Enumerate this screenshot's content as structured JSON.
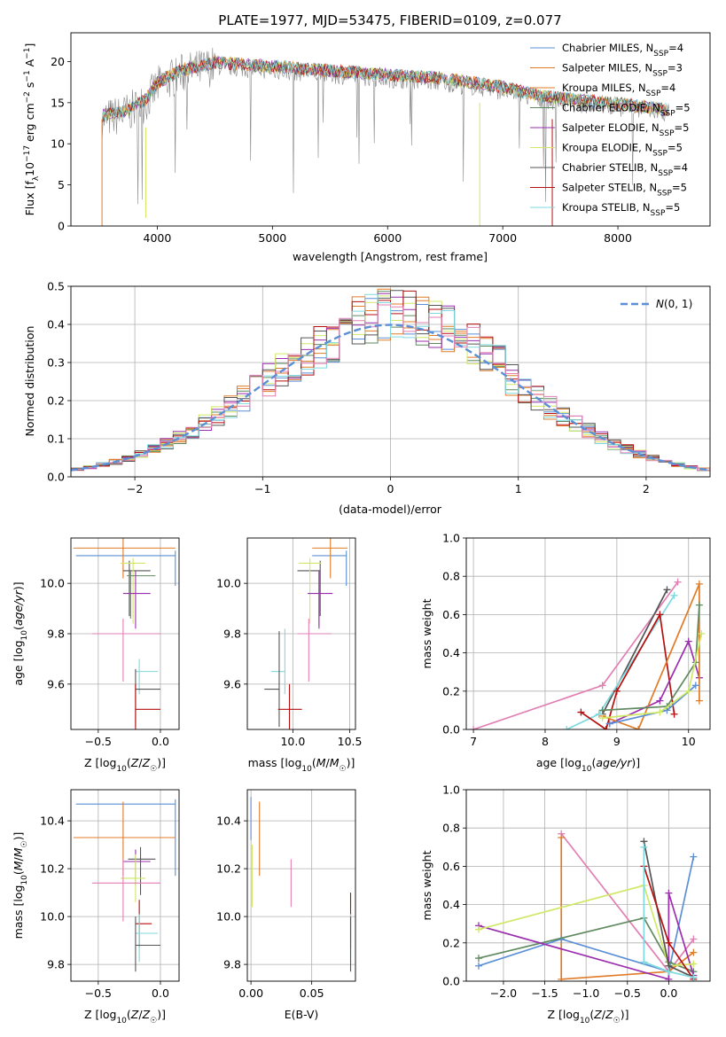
{
  "figure": {
    "title": "PLATE=1977, MJD=53475, FIBERID=0109, z=0.077"
  },
  "colors": {
    "chabrier_miles": "#5b8fd6",
    "salpeter_miles": "#e07b28",
    "kroupa_miles": "#e07b28",
    "chabrier_elodie": "#5f8a5f",
    "salpeter_elodie": "#9b2fae",
    "kroupa_elodie": "#cfe865",
    "chabrier_stelib": "#555555",
    "salpeter_stelib": "#b50f0f",
    "kroupa_stelib": "#7fd9de",
    "pink": "#e27fb3",
    "normal": "#5b8fd6"
  },
  "chart_data": [
    {
      "id": "spectrum",
      "type": "line",
      "xlabel": "wavelength [Angstrom, rest frame]",
      "ylabel": "Flux [f$_\\lambda$10$^{-17}$ erg cm$^{-2}$ s$^{-1}$ A$^{-1}$]",
      "xlim": [
        3250,
        8800
      ],
      "ylim": [
        0,
        23.5
      ],
      "xticks": [
        "4000",
        "5000",
        "6000",
        "7000",
        "8000"
      ],
      "yticks": [
        "0",
        "5",
        "10",
        "15",
        "20"
      ],
      "legend_position": "top-right",
      "series": [
        {
          "name": "Chabrier MILES, N",
          "sub": "SSP",
          "suffix": "=4",
          "color": "#5b8fd6"
        },
        {
          "name": "Salpeter MILES, N",
          "sub": "SSP",
          "suffix": "=3",
          "color": "#e07b28"
        },
        {
          "name": "Kroupa MILES, N",
          "sub": "SSP",
          "suffix": "=4",
          "color": "#e07b28"
        },
        {
          "name": "Chabrier ELODIE, N",
          "sub": "SSP",
          "suffix": "=5",
          "color": "#5f8a5f"
        },
        {
          "name": "Salpeter ELODIE, N",
          "sub": "SSP",
          "suffix": "=5",
          "color": "#9b2fae"
        },
        {
          "name": "Kroupa ELODIE, N",
          "sub": "SSP",
          "suffix": "=5",
          "color": "#cfe865"
        },
        {
          "name": "Chabrier STELIB, N",
          "sub": "SSP",
          "suffix": "=4",
          "color": "#555555"
        },
        {
          "name": "Salpeter STELIB, N",
          "sub": "SSP",
          "suffix": "=5",
          "color": "#b50f0f"
        },
        {
          "name": "Kroupa STELIB, N",
          "sub": "SSP",
          "suffix": "=5",
          "color": "#7fd9de"
        }
      ],
      "continuum": [
        [
          3520,
          13
        ],
        [
          3700,
          13.5
        ],
        [
          3900,
          15
        ],
        [
          4000,
          17
        ],
        [
          4200,
          18.5
        ],
        [
          4500,
          19.5
        ],
        [
          5000,
          19
        ],
        [
          5500,
          18.5
        ],
        [
          6000,
          18
        ],
        [
          6500,
          17.5
        ],
        [
          7000,
          16.5
        ],
        [
          7300,
          15.5
        ],
        [
          7600,
          15
        ],
        [
          8000,
          14.5
        ],
        [
          8400,
          13.8
        ]
      ]
    },
    {
      "id": "residuals",
      "type": "line",
      "xlabel": "(data-model)/error",
      "ylabel": "Normed distribution",
      "xlim": [
        -2.5,
        2.5
      ],
      "ylim": [
        0,
        0.5
      ],
      "xticks": [
        "−2",
        "−1",
        "0",
        "1",
        "2"
      ],
      "yticks": [
        "0.0",
        "0.1",
        "0.2",
        "0.3",
        "0.4",
        "0.5"
      ],
      "legend": "N(0, 1)",
      "legend_position": "top-right",
      "bin_width": 0.1
    },
    {
      "id": "age_vs_Z",
      "type": "scatter",
      "xlabel": "Z [log10(Z/Z☉)]",
      "ylabel": "age  [log10(age/yr)]",
      "xlim": [
        -0.72,
        0.15
      ],
      "ylim": [
        9.42,
        10.18
      ],
      "xticks": [
        "−0.5",
        "0.0"
      ],
      "yticks": [
        "9.6",
        "9.8",
        "10.0"
      ],
      "points": [
        {
          "x": 0.12,
          "y": 10.11,
          "xerr": [
            0.8,
            0
          ],
          "yerr": [
            0.12,
            0.02
          ],
          "color": "#5b8fd6"
        },
        {
          "x": -0.3,
          "y": 10.14,
          "xerr": [
            0.4,
            0.42
          ],
          "yerr": [
            0.12,
            0.04
          ],
          "color": "#e07b28"
        },
        {
          "x": -0.25,
          "y": 10.05,
          "xerr": [
            0.05,
            0.17
          ],
          "yerr": [
            0.18,
            0.04
          ],
          "color": "#555555"
        },
        {
          "x": -0.22,
          "y": 10.08,
          "xerr": [
            0.1,
            0.1
          ],
          "yerr": [
            0.24,
            0.02
          ],
          "color": "#cfe865"
        },
        {
          "x": -0.24,
          "y": 10.03,
          "xerr": [
            0.03,
            0.2
          ],
          "yerr": [
            0.17,
            0.02
          ],
          "color": "#5f8a5f"
        },
        {
          "x": -0.2,
          "y": 9.96,
          "xerr": [
            0.1,
            0.12
          ],
          "yerr": [
            0.14,
            0.09
          ],
          "color": "#9b2fae"
        },
        {
          "x": -0.3,
          "y": 9.8,
          "xerr": [
            0.25,
            0.3
          ],
          "yerr": [
            0.19,
            0.06
          ],
          "color": "#e27fb3"
        },
        {
          "x": -0.17,
          "y": 9.65,
          "xerr": [
            0.03,
            0.15
          ],
          "yerr": [
            0.09,
            0.05
          ],
          "color": "#7fd9de"
        },
        {
          "x": -0.2,
          "y": 9.58,
          "xerr": [
            0.0,
            0.2
          ],
          "yerr": [
            0.15,
            0.08
          ],
          "color": "#555555"
        },
        {
          "x": -0.2,
          "y": 9.5,
          "xerr": [
            0.0,
            0.2
          ],
          "yerr": [
            0.08,
            0.1
          ],
          "color": "#b50f0f"
        }
      ]
    },
    {
      "id": "age_vs_mass",
      "type": "scatter",
      "xlabel": "mass [log10(M/M☉)]",
      "ylabel": "",
      "xlim": [
        9.6,
        10.55
      ],
      "ylim": [
        9.42,
        10.18
      ],
      "xticks": [
        "10.0",
        "10.5"
      ],
      "yticks": [
        "9.6",
        "9.8",
        "10.0"
      ],
      "points": [
        {
          "x": 10.47,
          "y": 10.11,
          "xerr": [
            0.3,
            0
          ],
          "yerr": [
            0.12,
            0.02
          ],
          "color": "#5b8fd6"
        },
        {
          "x": 10.33,
          "y": 10.14,
          "xerr": [
            0.16,
            0.15
          ],
          "yerr": [
            0.12,
            0.04
          ],
          "color": "#e07b28"
        },
        {
          "x": 10.24,
          "y": 10.05,
          "xerr": [
            0.2,
            0.0
          ],
          "yerr": [
            0.18,
            0.04
          ],
          "color": "#555555"
        },
        {
          "x": 10.15,
          "y": 10.08,
          "xerr": [
            0.1,
            0.1
          ],
          "yerr": [
            0.24,
            0.02
          ],
          "color": "#cfe865"
        },
        {
          "x": 10.23,
          "y": 10.0,
          "xerr": [
            0.0,
            0.0
          ],
          "yerr": [
            0.17,
            0.05
          ],
          "color": "#5f8a5f"
        },
        {
          "x": 10.23,
          "y": 9.96,
          "xerr": [
            0.1,
            0.12
          ],
          "yerr": [
            0.14,
            0.09
          ],
          "color": "#9b2fae"
        },
        {
          "x": 10.14,
          "y": 9.8,
          "xerr": [
            0.1,
            0.2
          ],
          "yerr": [
            0.19,
            0.06
          ],
          "color": "#e27fb3"
        },
        {
          "x": 9.93,
          "y": 9.65,
          "xerr": [
            0.12,
            0.0
          ],
          "yerr": [
            0.09,
            0.17
          ],
          "color": "#7fd9de"
        },
        {
          "x": 9.88,
          "y": 9.58,
          "xerr": [
            0.13,
            0.0
          ],
          "yerr": [
            0.15,
            0.23
          ],
          "color": "#555555"
        },
        {
          "x": 9.97,
          "y": 9.5,
          "xerr": [
            0.1,
            0.11
          ],
          "yerr": [
            0.08,
            0.1
          ],
          "color": "#b50f0f"
        }
      ]
    },
    {
      "id": "weight_vs_age",
      "type": "line",
      "xlabel": "age  [log10(age/yr)]",
      "ylabel": "mass weight",
      "xlim": [
        6.9,
        10.3
      ],
      "ylim": [
        0,
        1.0
      ],
      "xticks": [
        "7",
        "8",
        "9",
        "10"
      ],
      "yticks": [
        "0.0",
        "0.2",
        "0.4",
        "0.6",
        "0.8",
        "1.0"
      ],
      "series": [
        {
          "color": "#e27fb3",
          "points": [
            [
              7.0,
              0.0
            ],
            [
              8.8,
              0.23
            ],
            [
              9.85,
              0.77
            ]
          ]
        },
        {
          "color": "#555555",
          "points": [
            [
              8.8,
              0.08
            ],
            [
              9.7,
              0.73
            ]
          ]
        },
        {
          "color": "#7fd9de",
          "points": [
            [
              8.3,
              0.0
            ],
            [
              8.75,
              0.08
            ],
            [
              9.8,
              0.7
            ]
          ]
        },
        {
          "color": "#b50f0f",
          "points": [
            [
              8.5,
              0.09
            ],
            [
              8.85,
              0.0
            ],
            [
              9.0,
              0.2
            ],
            [
              9.6,
              0.6
            ],
            [
              9.8,
              0.08
            ]
          ]
        },
        {
          "color": "#9b2fae",
          "points": [
            [
              8.9,
              0.03
            ],
            [
              9.6,
              0.15
            ],
            [
              10.0,
              0.46
            ],
            [
              10.15,
              0.27
            ]
          ]
        },
        {
          "color": "#e07b28",
          "points": [
            [
              8.8,
              0.07
            ],
            [
              9.3,
              0.0
            ],
            [
              10.15,
              0.76
            ],
            [
              10.15,
              0.15
            ]
          ]
        },
        {
          "color": "#5b8fd6",
          "points": [
            [
              8.9,
              0.03
            ],
            [
              9.7,
              0.1
            ],
            [
              10.1,
              0.23
            ]
          ]
        },
        {
          "color": "#5f8a5f",
          "points": [
            [
              8.8,
              0.1
            ],
            [
              9.7,
              0.12
            ],
            [
              10.1,
              0.35
            ],
            [
              10.15,
              0.65
            ]
          ]
        },
        {
          "color": "#cfe865",
          "points": [
            [
              8.8,
              0.06
            ],
            [
              9.6,
              0.09
            ],
            [
              10.0,
              0.2
            ],
            [
              10.18,
              0.5
            ]
          ]
        }
      ]
    },
    {
      "id": "mass_vs_Z",
      "type": "scatter",
      "xlabel": "Z [log10(Z/Z☉)]",
      "ylabel": "mass [log10(M/M☉)]",
      "xlim": [
        -0.72,
        0.15
      ],
      "ylim": [
        9.73,
        10.53
      ],
      "xticks": [
        "−0.5",
        "0.0"
      ],
      "yticks": [
        "9.8",
        "10.0",
        "10.2",
        "10.4"
      ],
      "points": [
        {
          "x": 0.12,
          "y": 10.47,
          "xerr": [
            0.8,
            0
          ],
          "yerr": [
            0.3,
            0.02
          ],
          "color": "#5b8fd6"
        },
        {
          "x": -0.3,
          "y": 10.33,
          "xerr": [
            0.4,
            0.42
          ],
          "yerr": [
            0.16,
            0.15
          ],
          "color": "#e07b28"
        },
        {
          "x": -0.16,
          "y": 10.24,
          "xerr": [
            0.1,
            0.12
          ],
          "yerr": [
            0.15,
            0.05
          ],
          "color": "#555555"
        },
        {
          "x": -0.2,
          "y": 10.23,
          "xerr": [
            0.1,
            0.12
          ],
          "yerr": [
            0.1,
            0.05
          ],
          "color": "#9b2fae"
        },
        {
          "x": -0.2,
          "y": 10.16,
          "xerr": [
            0.12,
            0.08
          ],
          "yerr": [
            0.1,
            0.1
          ],
          "color": "#cfe865"
        },
        {
          "x": -0.3,
          "y": 10.14,
          "xerr": [
            0.25,
            0.3
          ],
          "yerr": [
            0.16,
            0.1
          ],
          "color": "#e27fb3"
        },
        {
          "x": -0.17,
          "y": 9.97,
          "xerr": [
            0.03,
            0.1
          ],
          "yerr": [
            0.1,
            0.1
          ],
          "color": "#b50f0f"
        },
        {
          "x": -0.17,
          "y": 9.93,
          "xerr": [
            0.03,
            0.15
          ],
          "yerr": [
            0.12,
            0.08
          ],
          "color": "#7fd9de"
        },
        {
          "x": -0.2,
          "y": 9.88,
          "xerr": [
            0.0,
            0.2
          ],
          "yerr": [
            0.11,
            0.12
          ],
          "color": "#555555"
        }
      ]
    },
    {
      "id": "mass_vs_ebv",
      "type": "scatter",
      "xlabel": "E(B-V)",
      "ylabel": "",
      "xlim": [
        -0.003,
        0.086
      ],
      "ylim": [
        9.73,
        10.53
      ],
      "xticks": [
        "0.00",
        "0.05"
      ],
      "yticks": [
        "9.8",
        "10.0",
        "10.2",
        "10.4"
      ],
      "points": [
        {
          "x": 0.0,
          "y": 10.42,
          "yerr": [
            0.1,
            0.08
          ],
          "color": "#5b8fd6"
        },
        {
          "x": 0.007,
          "y": 10.33,
          "yerr": [
            0.16,
            0.15
          ],
          "color": "#e07b28"
        },
        {
          "x": 0.001,
          "y": 10.17,
          "yerr": [
            0.13,
            0.13
          ],
          "color": "#cfe865"
        },
        {
          "x": 0.033,
          "y": 10.14,
          "yerr": [
            0.1,
            0.1
          ],
          "color": "#e27fb3"
        },
        {
          "x": 0.082,
          "y": 9.97,
          "yerr": [
            0.1,
            0.13
          ],
          "color": "#b50f0f"
        },
        {
          "x": 0.082,
          "y": 9.93,
          "yerr": [
            0.12,
            0.08
          ],
          "color": "#7fd9de"
        },
        {
          "x": 0.082,
          "y": 9.88,
          "yerr": [
            0.11,
            0.12
          ],
          "color": "#555555"
        }
      ]
    },
    {
      "id": "weight_vs_Z",
      "type": "line",
      "xlabel": "Z [log10(Z/Z☉)]",
      "ylabel": "mass weight",
      "xlim": [
        -2.45,
        0.5
      ],
      "ylim": [
        0,
        1.0
      ],
      "xticks": [
        "−2.0",
        "−1.5",
        "−1.0",
        "−0.5",
        "0.0"
      ],
      "yticks": [
        "0.0",
        "0.2",
        "0.4",
        "0.6",
        "0.8",
        "1.0"
      ],
      "series": [
        {
          "color": "#e27fb3",
          "points": [
            [
              -1.3,
              0.77
            ],
            [
              0.0,
              0.05
            ],
            [
              0.3,
              0.22
            ]
          ]
        },
        {
          "color": "#e07b28",
          "points": [
            [
              -1.3,
              0.75
            ],
            [
              -1.3,
              0.01
            ],
            [
              0.0,
              0.05
            ],
            [
              0.3,
              0.15
            ]
          ]
        },
        {
          "color": "#5b8fd6",
          "points": [
            [
              -2.3,
              0.08
            ],
            [
              -1.3,
              0.22
            ],
            [
              0.0,
              0.05
            ],
            [
              0.3,
              0.65
            ]
          ]
        },
        {
          "color": "#5f8a5f",
          "points": [
            [
              -2.3,
              0.12
            ],
            [
              -0.3,
              0.33
            ],
            [
              0.0,
              0.1
            ],
            [
              0.3,
              0.05
            ]
          ]
        },
        {
          "color": "#9b2fae",
          "points": [
            [
              -2.3,
              0.29
            ],
            [
              0.0,
              0.01
            ],
            [
              0.0,
              0.46
            ],
            [
              0.3,
              0.03
            ]
          ]
        },
        {
          "color": "#cfe865",
          "points": [
            [
              -2.3,
              0.27
            ],
            [
              -0.3,
              0.5
            ],
            [
              0.0,
              0.08
            ],
            [
              0.3,
              0.09
            ]
          ]
        },
        {
          "color": "#555555",
          "points": [
            [
              -0.3,
              0.73
            ],
            [
              0.0,
              0.08
            ],
            [
              0.3,
              0.02
            ]
          ]
        },
        {
          "color": "#b50f0f",
          "points": [
            [
              -0.3,
              0.6
            ],
            [
              0.0,
              0.2
            ],
            [
              0.3,
              0.01
            ]
          ]
        },
        {
          "color": "#7fd9de",
          "points": [
            [
              -0.3,
              0.7
            ],
            [
              -0.3,
              0.1
            ],
            [
              0.0,
              0.05
            ],
            [
              0.3,
              0.02
            ]
          ]
        }
      ]
    }
  ]
}
